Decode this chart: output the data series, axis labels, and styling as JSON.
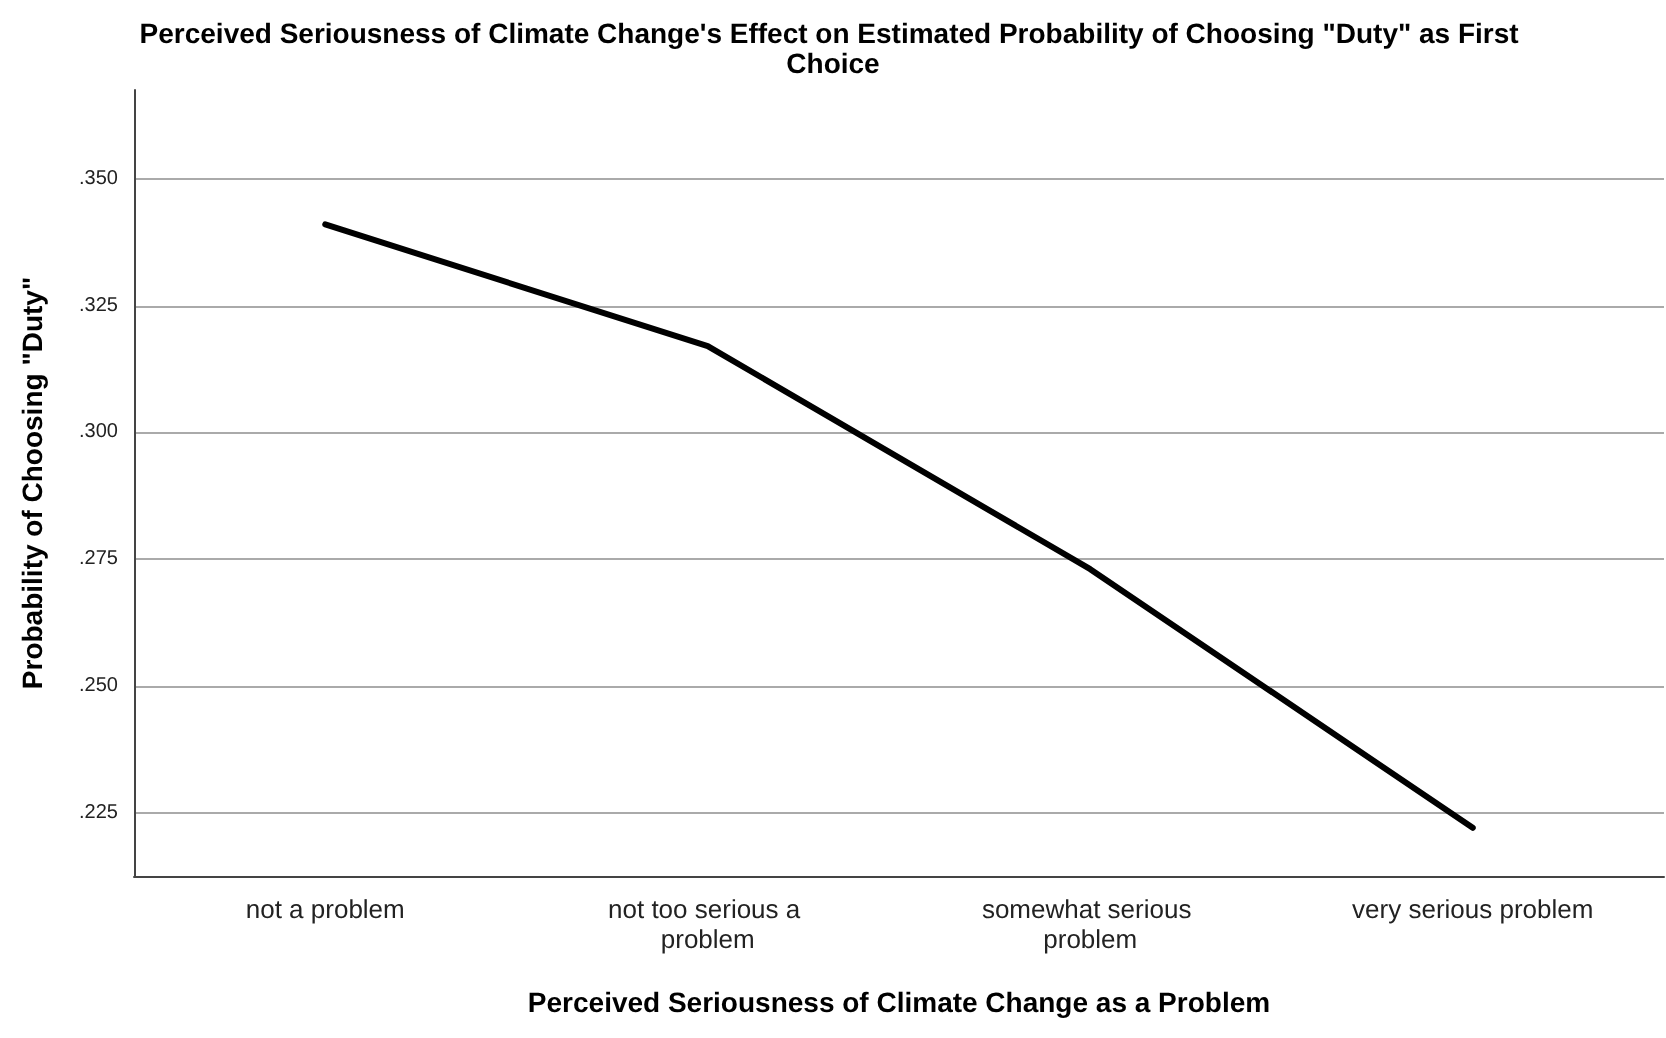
{
  "chart_data": {
    "type": "line",
    "title": "Perceived Seriousness of Climate Change's Effect on Estimated Probability of Choosing \"Duty\" as First Choice",
    "xlabel": "Perceived Seriousness of Climate Change as a Problem",
    "ylabel": "Probability of Choosing \"Duty\"",
    "categories": [
      "not a problem",
      "not too serious a problem",
      "somewhat serious problem",
      "very serious problem"
    ],
    "series": [
      {
        "color": "#000000",
        "values": [
          0.341,
          0.317,
          0.273,
          0.222
        ]
      }
    ],
    "ylim": [
      0.2125,
      0.3675
    ],
    "yticks": [
      {
        "value": 0.225,
        "label": ".225"
      },
      {
        "value": 0.25,
        "label": ".250"
      },
      {
        "value": 0.275,
        "label": ".275"
      },
      {
        "value": 0.3,
        "label": ".300"
      },
      {
        "value": 0.325,
        "label": ".325"
      },
      {
        "value": 0.35,
        "label": ".350"
      }
    ],
    "grid": "y",
    "marker": "none",
    "line_style": "solid"
  }
}
